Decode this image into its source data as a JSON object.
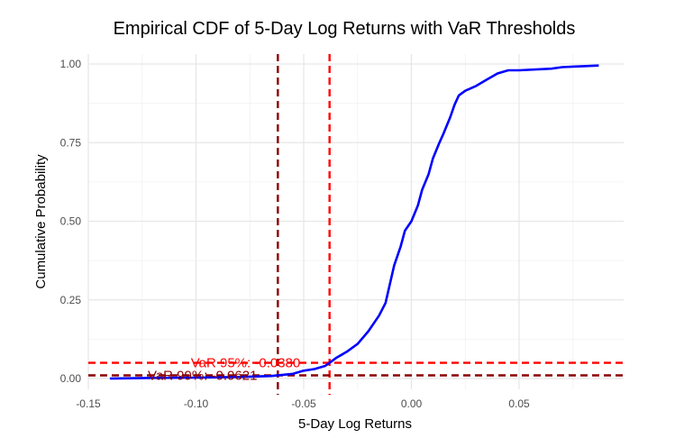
{
  "chart_data": {
    "type": "line",
    "title": "Empirical CDF of 5-Day Log Returns with VaR Thresholds",
    "xlabel": "5-Day Log Returns",
    "ylabel": "Cumulative Probability",
    "xlim": [
      -0.15,
      0.1
    ],
    "ylim": [
      0,
      1
    ],
    "x_ticks": [
      -0.15,
      -0.1,
      -0.05,
      0.0,
      0.05
    ],
    "x_tick_labels": [
      "-0.15",
      "-0.10",
      "-0.05",
      "0.00",
      "0.05"
    ],
    "y_ticks": [
      0,
      0.25,
      0.5,
      0.75,
      1.0
    ],
    "y_tick_labels": [
      "0.00",
      "0.25",
      "0.50",
      "0.75",
      "1.00"
    ],
    "grid": true,
    "series": [
      {
        "color": "#0000ff",
        "x": [
          -0.14,
          -0.12,
          -0.1,
          -0.08,
          -0.065,
          -0.055,
          -0.05,
          -0.045,
          -0.04,
          -0.038,
          -0.035,
          -0.03,
          -0.025,
          -0.02,
          -0.015,
          -0.012,
          -0.01,
          -0.008,
          -0.005,
          -0.003,
          0.0,
          0.003,
          0.005,
          0.008,
          0.01,
          0.013,
          0.015,
          0.018,
          0.02,
          0.022,
          0.025,
          0.03,
          0.035,
          0.04,
          0.045,
          0.05,
          0.065,
          0.07,
          0.08,
          0.087
        ],
        "y": [
          0.0,
          0.002,
          0.003,
          0.005,
          0.008,
          0.015,
          0.025,
          0.03,
          0.04,
          0.05,
          0.065,
          0.085,
          0.11,
          0.15,
          0.2,
          0.24,
          0.3,
          0.36,
          0.42,
          0.47,
          0.5,
          0.55,
          0.6,
          0.65,
          0.7,
          0.75,
          0.78,
          0.83,
          0.87,
          0.9,
          0.915,
          0.93,
          0.95,
          0.97,
          0.98,
          0.98,
          0.985,
          0.99,
          0.993,
          0.995
        ]
      }
    ],
    "reference_lines": [
      {
        "orientation": "vertical",
        "value": -0.062,
        "color": "#8b0000",
        "style": "dashed"
      },
      {
        "orientation": "vertical",
        "value": -0.038,
        "color": "#ff0000",
        "style": "dashed"
      },
      {
        "orientation": "horizontal",
        "value": 0.05,
        "color": "#ff0000",
        "style": "dashed"
      },
      {
        "orientation": "horizontal",
        "value": 0.01,
        "color": "#8b0000",
        "style": "dashed"
      }
    ],
    "annotations": [
      {
        "text": "VaR 95%: -0.0380",
        "x": -0.1,
        "y": 0.05,
        "color": "#ff0000"
      },
      {
        "text": "VaR 99%: -0.0621",
        "x": -0.12,
        "y": 0.01,
        "color": "#8b0000"
      }
    ]
  }
}
